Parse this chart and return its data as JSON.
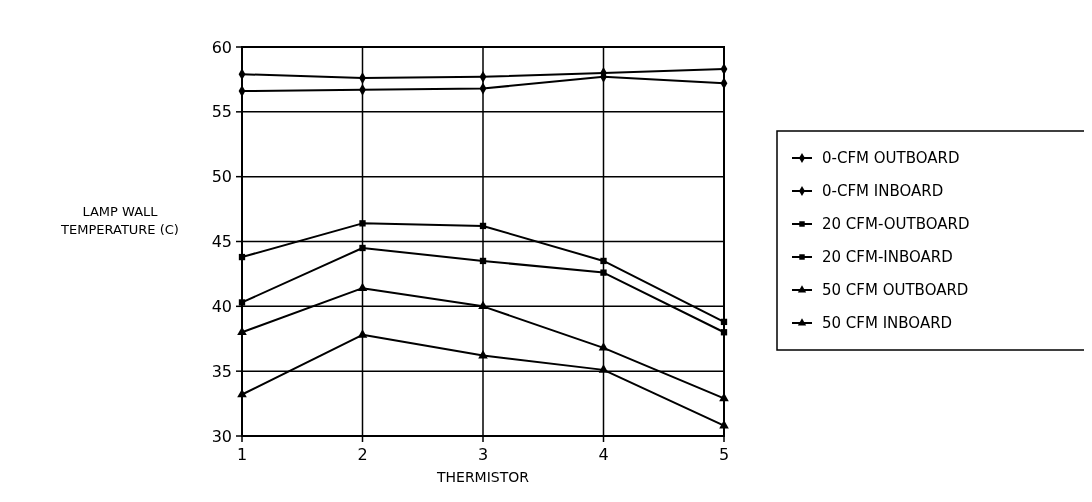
{
  "chart_data": {
    "type": "line",
    "xlabel": "THERMISTOR",
    "ylabel": "LAMP WALL\nTEMPERATURE (C)",
    "x": [
      1,
      2,
      3,
      4,
      5
    ],
    "xlim": [
      1,
      5
    ],
    "xticks": [
      1,
      2,
      3,
      4,
      5
    ],
    "ylim": [
      30,
      60
    ],
    "yticks": [
      30,
      35,
      40,
      45,
      50,
      55,
      60
    ],
    "grid": true,
    "legend": "right",
    "line_style": "solid",
    "series": [
      {
        "name": "0-CFM OUTBOARD",
        "color": "#000000",
        "marker": "diamond",
        "values": [
          56.6,
          56.7,
          56.8,
          57.7,
          57.2
        ]
      },
      {
        "name": "0-CFM INBOARD",
        "color": "#000000",
        "marker": "diamond",
        "values": [
          57.9,
          57.6,
          57.7,
          58.0,
          58.3
        ]
      },
      {
        "name": "20 CFM-OUTBOARD",
        "color": "#000000",
        "marker": "square",
        "values": [
          40.3,
          44.5,
          43.5,
          42.6,
          38.0
        ]
      },
      {
        "name": "20 CFM-INBOARD",
        "color": "#000000",
        "marker": "square",
        "values": [
          43.8,
          46.4,
          46.2,
          43.5,
          38.8
        ]
      },
      {
        "name": "50 CFM OUTBOARD",
        "color": "#000000",
        "marker": "triangle",
        "values": [
          38.0,
          41.4,
          40.0,
          36.8,
          32.9
        ]
      },
      {
        "name": "50 CFM INBOARD",
        "color": "#000000",
        "marker": "triangle",
        "values": [
          33.2,
          37.8,
          36.2,
          35.1,
          30.8
        ]
      }
    ]
  }
}
